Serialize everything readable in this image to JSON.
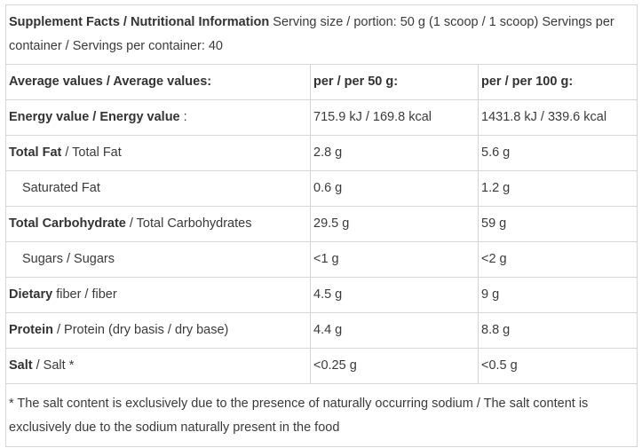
{
  "header": {
    "title": "Supplement Facts / Nutritional Information",
    "serving_info": " Serving size / portion: 50 g (1 scoop / 1 scoop) Servings per container / Servings per container: 40"
  },
  "columns": {
    "label": "Average values / Average values:",
    "per50": "per / per 50 g:",
    "per100": "per / per 100 g:"
  },
  "rows": [
    {
      "bold": "Energy value",
      "rest": " / Energy value",
      "suffix": " :",
      "per50": "715.9 kJ / 169.8 kcal",
      "per100": "1431.8 kJ / 339.6 kcal"
    },
    {
      "bold": "Total Fat",
      "rest": " / Total Fat",
      "suffix": "",
      "per50": "2.8 g",
      "per100": "5.6 g"
    },
    {
      "bold": "",
      "rest": "Saturated Fat",
      "suffix": "",
      "per50": "0.6 g",
      "per100": "1.2 g"
    },
    {
      "bold": "Total Carbohydrate",
      "rest": " / Total Carbohydrates",
      "suffix": "",
      "per50": "29.5 g",
      "per100": "59 g"
    },
    {
      "bold": "",
      "rest": "Sugars / Sugars",
      "suffix": "",
      "per50": "<1 g",
      "per100": "<2 g"
    },
    {
      "bold": "Dietary",
      "rest": " fiber / fiber",
      "suffix": "",
      "per50": "4.5 g",
      "per100": "9 g"
    },
    {
      "bold": "Protein",
      "rest": " / Protein (dry basis / dry base)",
      "suffix": "",
      "per50": "4.4 g",
      "per100": "8.8 g"
    },
    {
      "bold": "Salt",
      "rest": " / Salt *",
      "suffix": "",
      "per50": "<0.25 g",
      "per100": "<0.5 g"
    }
  ],
  "footnote": "* The salt content is exclusively due to the presence of naturally occurring sodium / The salt content is exclusively due to the sodium naturally present in the food"
}
